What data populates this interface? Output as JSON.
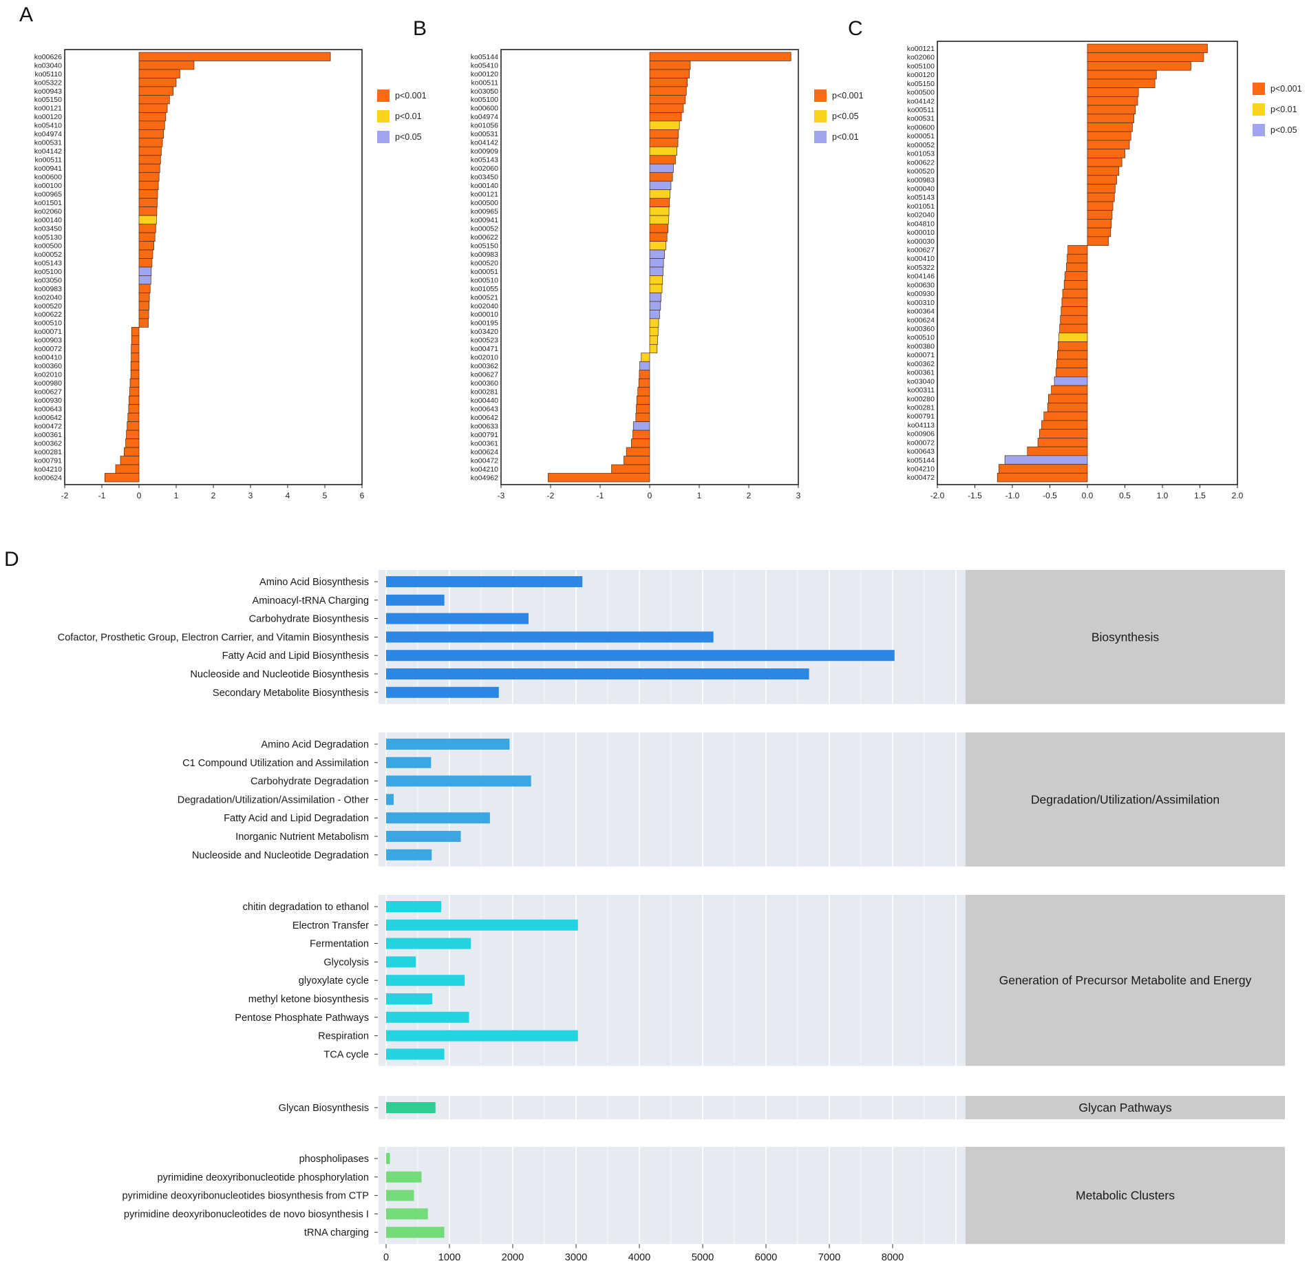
{
  "chart_data": [
    {
      "panel": "A",
      "type": "bar",
      "orientation": "horizontal",
      "xlim": [
        -2,
        6
      ],
      "xticks": [
        "-2",
        "-1",
        "0",
        "1",
        "2",
        "3",
        "4",
        "5",
        "6"
      ],
      "xtick_values": [
        -2,
        -1,
        0,
        1,
        2,
        3,
        4,
        5,
        6
      ],
      "legend": [
        {
          "label": "p<0.001",
          "color": "#f96a12"
        },
        {
          "label": "p<0.01",
          "color": "#fbd31f"
        },
        {
          "label": "p<0.05",
          "color": "#9fa5ef"
        }
      ],
      "categories": [
        "ko00626",
        "ko03040",
        "ko05110",
        "ko05322",
        "ko00943",
        "ko05150",
        "ko00121",
        "ko00120",
        "ko05410",
        "ko04974",
        "ko00531",
        "ko04142",
        "ko00511",
        "ko00941",
        "ko00600",
        "ko00100",
        "ko00965",
        "ko01501",
        "ko02060",
        "ko00140",
        "ko03450",
        "ko05130",
        "ko00500",
        "ko00052",
        "ko05143",
        "ko05100",
        "ko03050",
        "ko00983",
        "ko02040",
        "ko00520",
        "ko00622",
        "ko00510",
        "ko00071",
        "ko00903",
        "ko00072",
        "ko00410",
        "ko00360",
        "ko02010",
        "ko00980",
        "ko00627",
        "ko00930",
        "ko00643",
        "ko00642",
        "ko00472",
        "ko00361",
        "ko00362",
        "ko00281",
        "ko00791",
        "ko04210",
        "ko00624"
      ],
      "values": [
        5.15,
        1.48,
        1.1,
        1.0,
        0.92,
        0.82,
        0.76,
        0.72,
        0.69,
        0.66,
        0.63,
        0.6,
        0.58,
        0.56,
        0.54,
        0.52,
        0.5,
        0.49,
        0.48,
        0.47,
        0.45,
        0.43,
        0.4,
        0.37,
        0.35,
        0.33,
        0.32,
        0.3,
        0.28,
        0.27,
        0.26,
        0.25,
        -0.2,
        -0.2,
        -0.21,
        -0.21,
        -0.22,
        -0.22,
        -0.24,
        -0.25,
        -0.27,
        -0.28,
        -0.3,
        -0.32,
        -0.34,
        -0.36,
        -0.4,
        -0.5,
        -0.63,
        -0.92
      ],
      "significance": [
        "p<0.001",
        "p<0.001",
        "p<0.001",
        "p<0.001",
        "p<0.001",
        "p<0.001",
        "p<0.001",
        "p<0.001",
        "p<0.001",
        "p<0.001",
        "p<0.001",
        "p<0.001",
        "p<0.001",
        "p<0.001",
        "p<0.001",
        "p<0.001",
        "p<0.001",
        "p<0.001",
        "p<0.001",
        "p<0.01",
        "p<0.001",
        "p<0.001",
        "p<0.001",
        "p<0.001",
        "p<0.001",
        "p<0.05",
        "p<0.05",
        "p<0.001",
        "p<0.001",
        "p<0.001",
        "p<0.001",
        "p<0.001",
        "p<0.001",
        "p<0.001",
        "p<0.001",
        "p<0.001",
        "p<0.001",
        "p<0.001",
        "p<0.001",
        "p<0.001",
        "p<0.001",
        "p<0.001",
        "p<0.001",
        "p<0.001",
        "p<0.001",
        "p<0.001",
        "p<0.001",
        "p<0.001",
        "p<0.001",
        "p<0.001"
      ]
    },
    {
      "panel": "B",
      "type": "bar",
      "orientation": "horizontal",
      "xlim": [
        -3,
        3
      ],
      "xticks": [
        "-3",
        "-2",
        "-1",
        "0",
        "1",
        "2",
        "3"
      ],
      "xtick_values": [
        -3,
        -2,
        -1,
        0,
        1,
        2,
        3
      ],
      "legend": [
        {
          "label": "p<0.001",
          "color": "#f96a12"
        },
        {
          "label": "p<0.05",
          "color": "#fbd31f"
        },
        {
          "label": "p<0.01",
          "color": "#9fa5ef"
        }
      ],
      "categories": [
        "ko05144",
        "ko05410",
        "ko00120",
        "ko00511",
        "ko03050",
        "ko05100",
        "ko00600",
        "ko04974",
        "ko01056",
        "ko00531",
        "ko04142",
        "ko00909",
        "ko05143",
        "ko02060",
        "ko03450",
        "ko00140",
        "ko00121",
        "ko00500",
        "ko00965",
        "ko00941",
        "ko00052",
        "ko00622",
        "ko05150",
        "ko00983",
        "ko00520",
        "ko00051",
        "ko00510",
        "ko01055",
        "ko00521",
        "ko02040",
        "ko00010",
        "ko00195",
        "ko03420",
        "ko00523",
        "ko00471",
        "ko02010",
        "ko00362",
        "ko00627",
        "ko00360",
        "ko00281",
        "ko00440",
        "ko00643",
        "ko00642",
        "ko00633",
        "ko00791",
        "ko00361",
        "ko00624",
        "ko00472",
        "ko04210",
        "ko04962"
      ],
      "values": [
        2.85,
        0.82,
        0.8,
        0.76,
        0.74,
        0.72,
        0.68,
        0.64,
        0.6,
        0.58,
        0.57,
        0.55,
        0.52,
        0.48,
        0.46,
        0.43,
        0.41,
        0.4,
        0.39,
        0.38,
        0.37,
        0.35,
        0.33,
        0.3,
        0.28,
        0.27,
        0.26,
        0.25,
        0.23,
        0.22,
        0.2,
        0.18,
        0.17,
        0.16,
        0.15,
        -0.17,
        -0.2,
        -0.21,
        -0.22,
        -0.24,
        -0.26,
        -0.27,
        -0.28,
        -0.33,
        -0.34,
        -0.37,
        -0.47,
        -0.52,
        -0.77,
        -2.05
      ],
      "significance": [
        "p<0.001",
        "p<0.001",
        "p<0.001",
        "p<0.001",
        "p<0.001",
        "p<0.001",
        "p<0.001",
        "p<0.001",
        "p<0.05",
        "p<0.001",
        "p<0.001",
        "p<0.05",
        "p<0.001",
        "p<0.01",
        "p<0.001",
        "p<0.01",
        "p<0.05",
        "p<0.001",
        "p<0.05",
        "p<0.05",
        "p<0.001",
        "p<0.001",
        "p<0.05",
        "p<0.01",
        "p<0.01",
        "p<0.01",
        "p<0.05",
        "p<0.05",
        "p<0.01",
        "p<0.01",
        "p<0.01",
        "p<0.05",
        "p<0.05",
        "p<0.05",
        "p<0.05",
        "p<0.05",
        "p<0.01",
        "p<0.001",
        "p<0.001",
        "p<0.001",
        "p<0.001",
        "p<0.001",
        "p<0.001",
        "p<0.01",
        "p<0.001",
        "p<0.001",
        "p<0.001",
        "p<0.001",
        "p<0.001",
        "p<0.001"
      ]
    },
    {
      "panel": "C",
      "type": "bar",
      "orientation": "horizontal",
      "xlim": [
        -2.0,
        2.0
      ],
      "xticks": [
        "-2.0",
        "-1.5",
        "-1.0",
        "-0.5",
        "0.0",
        "0.5",
        "1.0",
        "1.5",
        "2.0"
      ],
      "xtick_values": [
        -2.0,
        -1.5,
        -1.0,
        -0.5,
        0.0,
        0.5,
        1.0,
        1.5,
        2.0
      ],
      "legend": [
        {
          "label": "p<0.001",
          "color": "#f96a12"
        },
        {
          "label": "p<0.01",
          "color": "#fbd31f"
        },
        {
          "label": "p<0.05",
          "color": "#9fa5ef"
        }
      ],
      "categories": [
        "ko00121",
        "ko02060",
        "ko05100",
        "ko00120",
        "ko05150",
        "ko00500",
        "ko04142",
        "ko00511",
        "ko00531",
        "ko00600",
        "ko00051",
        "ko00052",
        "ko01053",
        "ko00622",
        "ko00520",
        "ko00983",
        "ko00040",
        "ko05143",
        "ko01051",
        "ko02040",
        "ko04810",
        "ko00010",
        "ko00030",
        "ko00627",
        "ko00410",
        "ko05322",
        "ko04146",
        "ko00630",
        "ko00930",
        "ko00310",
        "ko00364",
        "ko00624",
        "ko00360",
        "ko00510",
        "ko00380",
        "ko00071",
        "ko00362",
        "ko00361",
        "ko03040",
        "ko00311",
        "ko00280",
        "ko00281",
        "ko00791",
        "ko04113",
        "ko00906",
        "ko00072",
        "ko00643",
        "ko05144",
        "ko04210",
        "ko00472"
      ],
      "values": [
        1.6,
        1.55,
        1.38,
        0.92,
        0.9,
        0.68,
        0.67,
        0.64,
        0.62,
        0.6,
        0.58,
        0.56,
        0.5,
        0.46,
        0.42,
        0.39,
        0.37,
        0.36,
        0.34,
        0.33,
        0.32,
        0.31,
        0.28,
        -0.26,
        -0.27,
        -0.28,
        -0.3,
        -0.31,
        -0.33,
        -0.34,
        -0.35,
        -0.36,
        -0.37,
        -0.38,
        -0.39,
        -0.4,
        -0.41,
        -0.42,
        -0.44,
        -0.48,
        -0.52,
        -0.53,
        -0.58,
        -0.61,
        -0.64,
        -0.66,
        -0.8,
        -1.1,
        -1.18,
        -1.2
      ],
      "significance": [
        "p<0.001",
        "p<0.001",
        "p<0.001",
        "p<0.001",
        "p<0.001",
        "p<0.001",
        "p<0.001",
        "p<0.001",
        "p<0.001",
        "p<0.001",
        "p<0.001",
        "p<0.001",
        "p<0.001",
        "p<0.001",
        "p<0.001",
        "p<0.001",
        "p<0.001",
        "p<0.001",
        "p<0.001",
        "p<0.001",
        "p<0.001",
        "p<0.001",
        "p<0.001",
        "p<0.001",
        "p<0.001",
        "p<0.001",
        "p<0.001",
        "p<0.001",
        "p<0.001",
        "p<0.001",
        "p<0.001",
        "p<0.001",
        "p<0.001",
        "p<0.01",
        "p<0.001",
        "p<0.001",
        "p<0.001",
        "p<0.001",
        "p<0.05",
        "p<0.001",
        "p<0.001",
        "p<0.001",
        "p<0.001",
        "p<0.001",
        "p<0.001",
        "p<0.001",
        "p<0.001",
        "p<0.05",
        "p<0.001",
        "p<0.001"
      ]
    },
    {
      "panel": "D",
      "type": "bar",
      "orientation": "horizontal",
      "xlim": [
        0,
        9000
      ],
      "xticks": [
        "0",
        "1000",
        "2000",
        "3000",
        "4000",
        "5000",
        "6000",
        "7000",
        "8000"
      ],
      "xtick_values": [
        0,
        1000,
        2000,
        3000,
        4000,
        5000,
        6000,
        7000,
        8000
      ],
      "facets": [
        {
          "name": "Biosynthesis",
          "color": "#2c86e4",
          "categories": [
            "Amino Acid Biosynthesis",
            "Aminoacyl-tRNA Charging",
            "Carbohydrate Biosynthesis",
            "Cofactor, Prosthetic Group, Electron Carrier, and Vitamin Biosynthesis",
            "Fatty Acid and Lipid Biosynthesis",
            "Nucleoside and Nucleotide Biosynthesis",
            "Secondary Metabolite Biosynthesis"
          ],
          "values": [
            3100,
            920,
            2250,
            5170,
            8030,
            6680,
            1780
          ]
        },
        {
          "name": "Degradation/Utilization/Assimilation",
          "color": "#3aa6e2",
          "categories": [
            "Amino Acid Degradation",
            "C1 Compound Utilization and Assimilation",
            "Carbohydrate Degradation",
            "Degradation/Utilization/Assimilation - Other",
            "Fatty Acid and Lipid Degradation",
            "Inorganic Nutrient Metabolism",
            "Nucleoside and Nucleotide Degradation"
          ],
          "values": [
            1950,
            710,
            2290,
            120,
            1640,
            1180,
            720
          ]
        },
        {
          "name": "Generation of Precursor Metabolite and Energy",
          "color": "#22d3e2",
          "categories": [
            "chitin degradation to ethanol",
            "Electron Transfer",
            "Fermentation",
            "Glycolysis",
            "glyoxylate cycle",
            "methyl ketone biosynthesis",
            "Pentose Phosphate Pathways",
            "Respiration",
            "TCA cycle"
          ],
          "values": [
            870,
            3030,
            1340,
            470,
            1240,
            730,
            1310,
            3030,
            920
          ]
        },
        {
          "name": "Glycan Pathways",
          "color": "#2fcd92",
          "categories": [
            "Glycan Biosynthesis"
          ],
          "values": [
            780
          ]
        },
        {
          "name": "Metabolic Clusters",
          "color": "#73db7a",
          "categories": [
            "phospholipases",
            "pyrimidine deoxyribonucleotide phosphorylation",
            "pyrimidine deoxyribonucleotides biosynthesis from CTP",
            "pyrimidine deoxyribonucleotides de novo biosynthesis I",
            "tRNA charging"
          ],
          "values": [
            60,
            560,
            440,
            660,
            920
          ]
        }
      ]
    }
  ],
  "panel_labels": [
    "A",
    "B",
    "C",
    "D"
  ]
}
